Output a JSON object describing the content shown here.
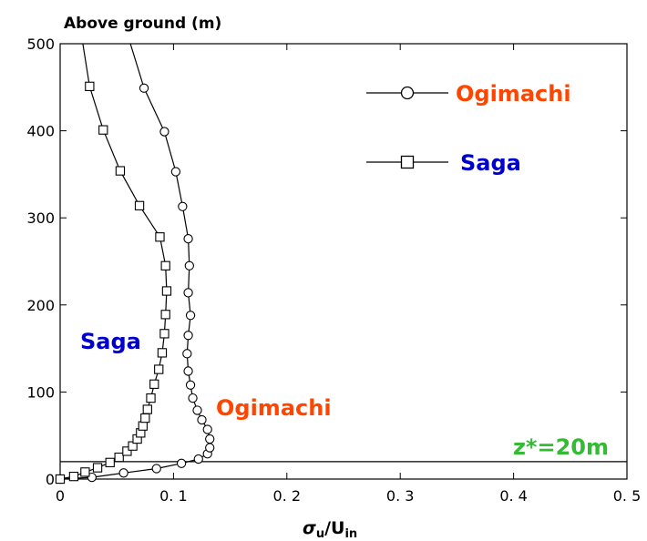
{
  "chart_data": {
    "type": "line",
    "ylabel": "Above ground (m)",
    "xlabel_main": "σ",
    "xlabel_sub1": "u",
    "xlabel_mid": "/U",
    "xlabel_sub2": "in",
    "xlim": [
      0,
      0.5
    ],
    "ylim": [
      0,
      500
    ],
    "x_ticks": [
      0,
      0.1,
      0.2,
      0.3,
      0.4,
      0.5
    ],
    "x_tick_labels": [
      "0",
      "0. 1",
      "0. 2",
      "0. 3",
      "0. 4",
      "0. 5"
    ],
    "y_ticks": [
      0,
      100,
      200,
      300,
      400,
      500
    ],
    "y_tick_labels": [
      "0",
      "100",
      "200",
      "300",
      "400",
      "500"
    ],
    "grid": false,
    "legend": "top-right",
    "series": [
      {
        "name": "Ogimachi",
        "marker": "circle",
        "color": "#ff4500",
        "points": [
          [
            0.0,
            0
          ],
          [
            0.028,
            2
          ],
          [
            0.056,
            7
          ],
          [
            0.085,
            12
          ],
          [
            0.107,
            18
          ],
          [
            0.122,
            23
          ],
          [
            0.13,
            29
          ],
          [
            0.132,
            36
          ],
          [
            0.132,
            46
          ],
          [
            0.13,
            57
          ],
          [
            0.125,
            68
          ],
          [
            0.121,
            79
          ],
          [
            0.117,
            93
          ],
          [
            0.115,
            108
          ],
          [
            0.113,
            124
          ],
          [
            0.112,
            144
          ],
          [
            0.113,
            165
          ],
          [
            0.115,
            188
          ],
          [
            0.113,
            214
          ],
          [
            0.114,
            245
          ],
          [
            0.113,
            276
          ],
          [
            0.108,
            313
          ],
          [
            0.102,
            353
          ],
          [
            0.092,
            399
          ],
          [
            0.074,
            449
          ]
        ],
        "line_extension": [
          0.062,
          500
        ]
      },
      {
        "name": "Saga",
        "marker": "square",
        "color": "#0000cd",
        "points": [
          [
            0.0,
            0
          ],
          [
            0.012,
            3
          ],
          [
            0.022,
            8
          ],
          [
            0.033,
            13
          ],
          [
            0.044,
            19
          ],
          [
            0.052,
            25
          ],
          [
            0.059,
            32
          ],
          [
            0.064,
            38
          ],
          [
            0.068,
            46
          ],
          [
            0.071,
            53
          ],
          [
            0.073,
            61
          ],
          [
            0.075,
            70
          ],
          [
            0.077,
            80
          ],
          [
            0.08,
            93
          ],
          [
            0.083,
            109
          ],
          [
            0.087,
            126
          ],
          [
            0.09,
            145
          ],
          [
            0.092,
            167
          ],
          [
            0.093,
            189
          ],
          [
            0.094,
            216
          ],
          [
            0.093,
            245
          ],
          [
            0.088,
            278
          ],
          [
            0.07,
            314
          ],
          [
            0.053,
            354
          ],
          [
            0.038,
            401
          ],
          [
            0.026,
            451
          ]
        ],
        "line_extension": [
          0.02,
          500
        ]
      }
    ],
    "reference_line": {
      "y": 20,
      "label": "z*=20m",
      "color": "#33bb33"
    },
    "annotations": [
      {
        "text": "Saga",
        "color": "#0000cd"
      },
      {
        "text": "Ogimachi",
        "color": "#ff4500"
      }
    ]
  }
}
